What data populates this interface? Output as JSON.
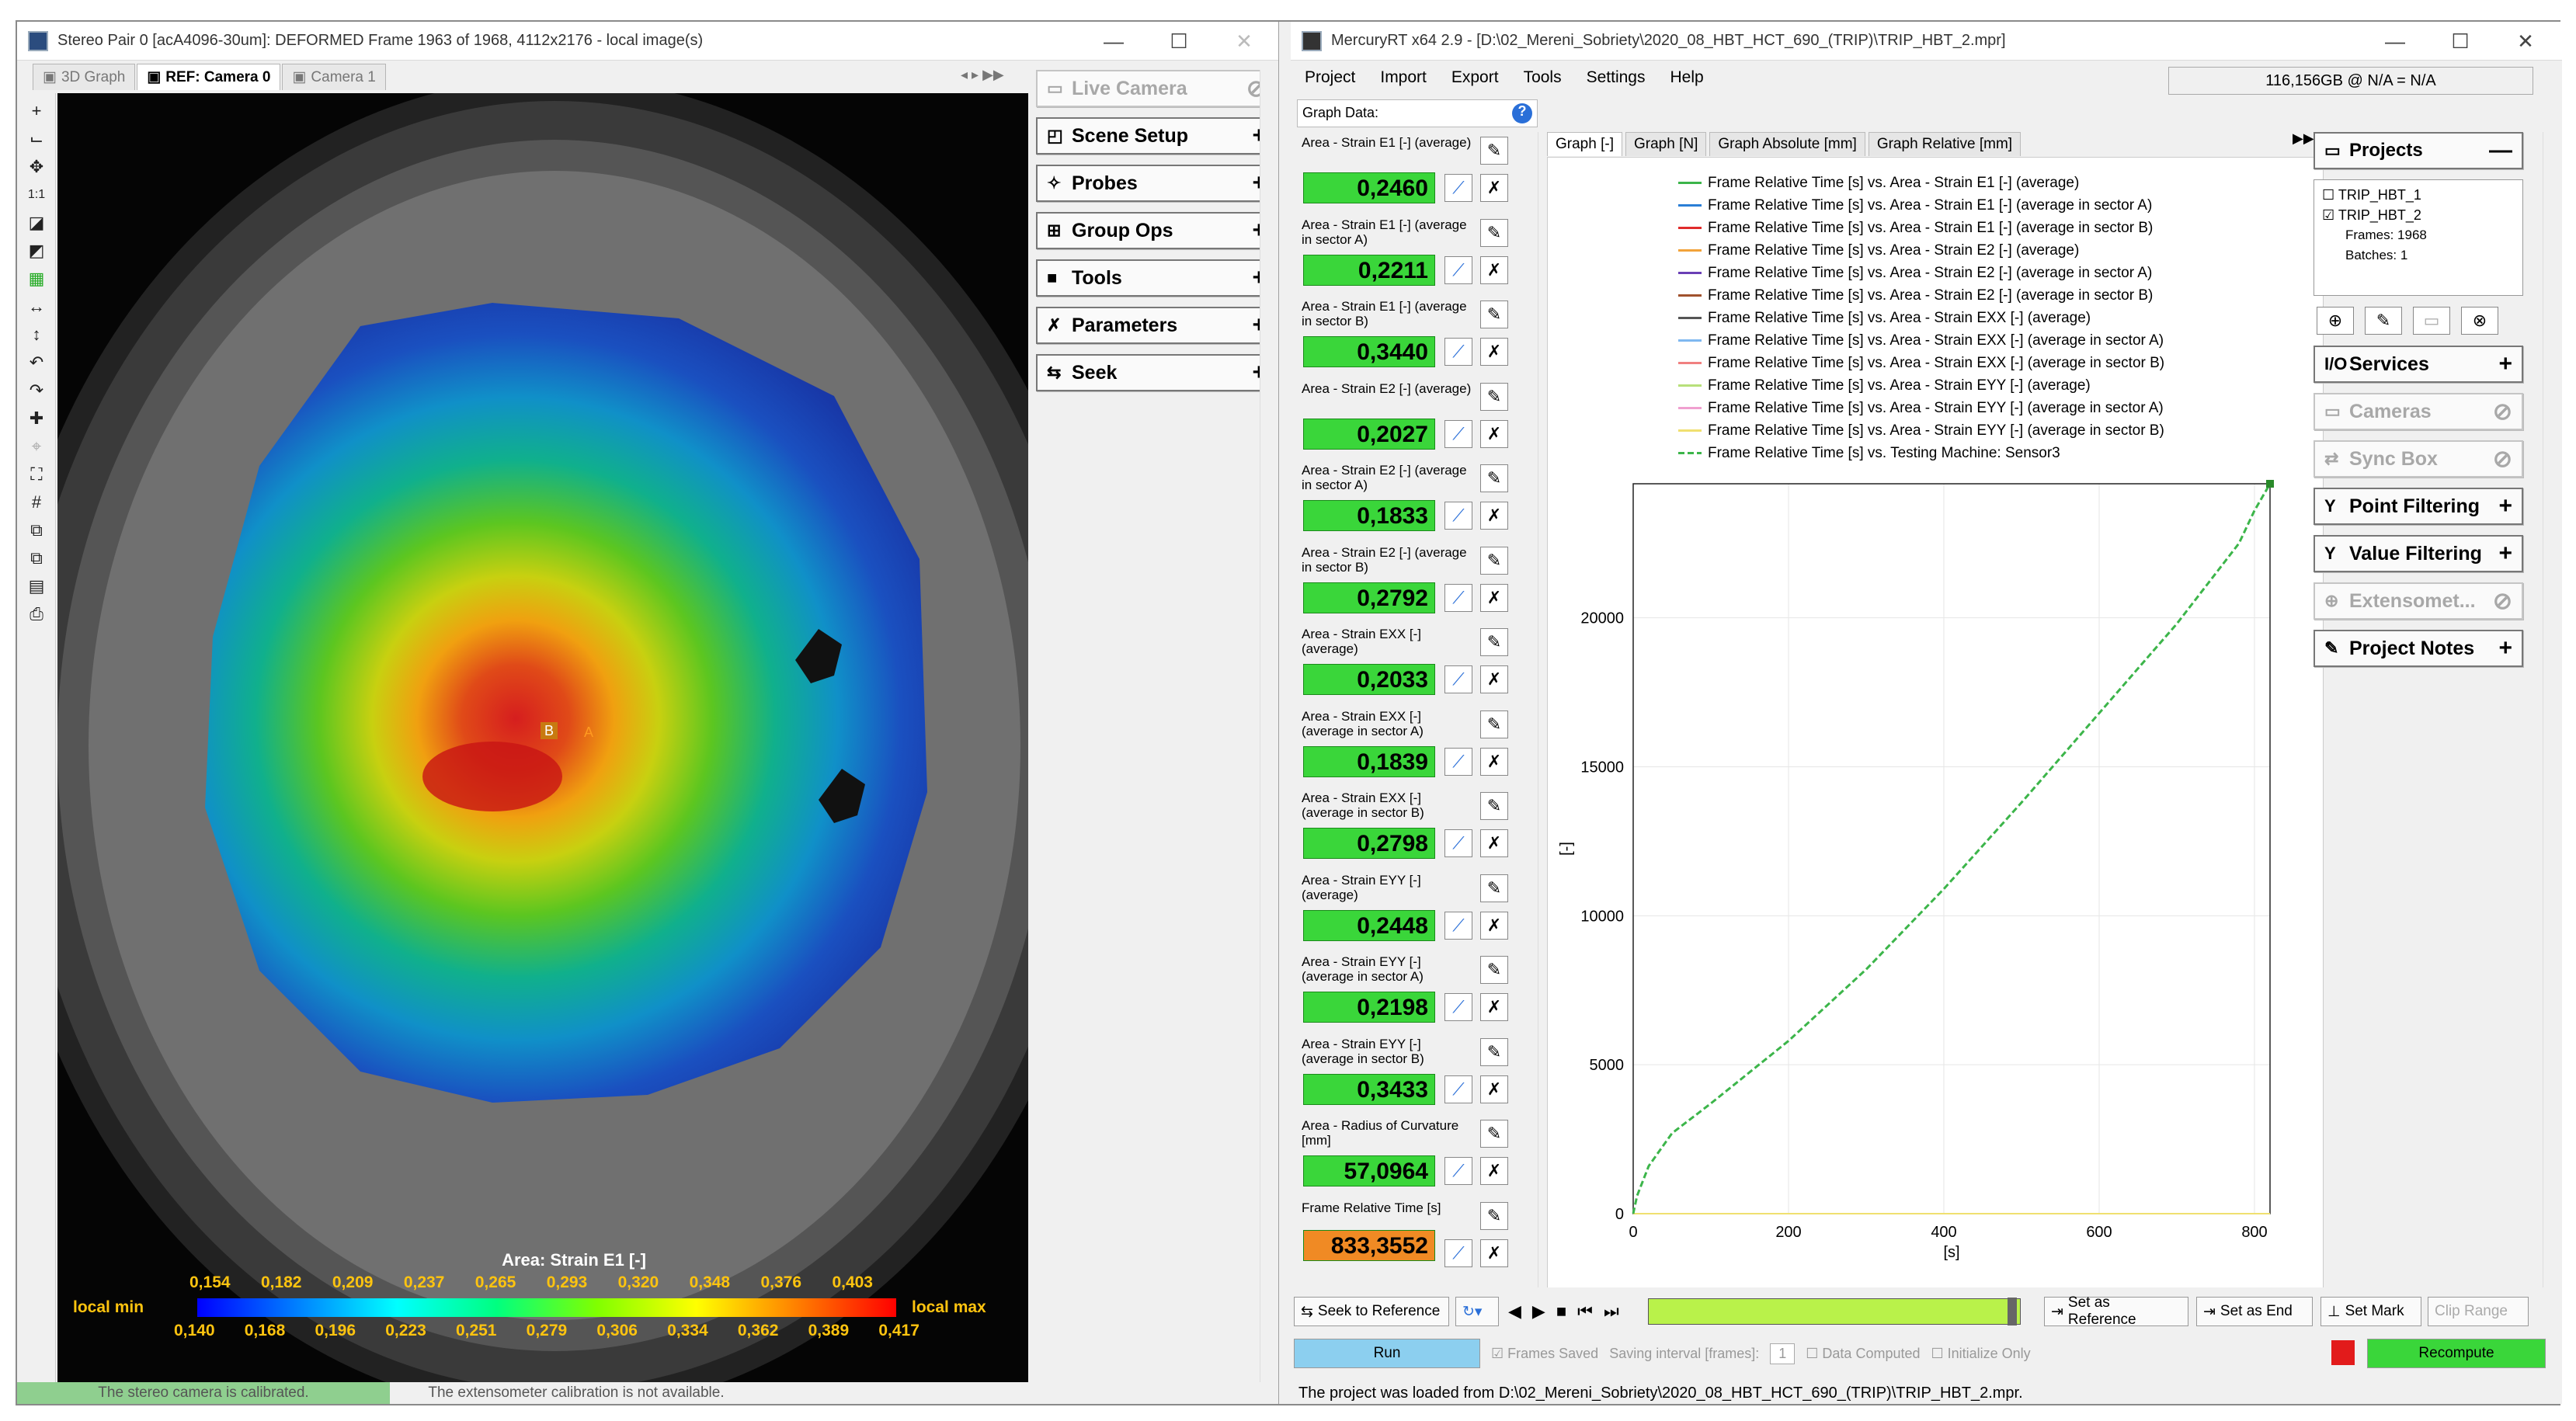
{
  "left": {
    "title": "Stereo Pair 0 [acA4096-30um]: DEFORMED Frame 1963 of 1968, 4112x2176 - local image(s)",
    "tabs": [
      "3D Graph",
      "REF: Camera 0",
      "Camera 1"
    ],
    "panel_buttons": [
      {
        "label": "Live Camera",
        "icon": "camera-icon",
        "action": "⊘",
        "enabled": false
      },
      {
        "label": "Scene Setup",
        "icon": "scene-icon",
        "action": "+",
        "enabled": true
      },
      {
        "label": "Probes",
        "icon": "probe-icon",
        "action": "+",
        "enabled": true
      },
      {
        "label": "Group Ops",
        "icon": "group-icon",
        "action": "+",
        "enabled": true
      },
      {
        "label": "Tools",
        "icon": "tools-icon",
        "action": "+",
        "enabled": true
      },
      {
        "label": "Parameters",
        "icon": "parameters-icon",
        "action": "+",
        "enabled": true
      },
      {
        "label": "Seek",
        "icon": "seek-icon",
        "action": "+",
        "enabled": true
      }
    ],
    "colorbar": {
      "title": "Area: Strain E1 [-]",
      "top_ticks": [
        "0,154",
        "0,182",
        "0,209",
        "0,237",
        "0,265",
        "0,293",
        "0,320",
        "0,348",
        "0,376",
        "0,403"
      ],
      "bottom_ticks": [
        "0,140",
        "0,168",
        "0,196",
        "0,223",
        "0,251",
        "0,279",
        "0,306",
        "0,334",
        "0,362",
        "0,389",
        "0,417"
      ],
      "min_label": "local min",
      "max_label": "local max"
    },
    "markers": [
      "B",
      "A"
    ],
    "status": [
      "The stereo camera is calibrated.",
      "The extensometer calibration is not available."
    ]
  },
  "right": {
    "title": "MercuryRT x64 2.9 - [D:\\02_Mereni_Sobriety\\2020_08_HBT_HCT_690_(TRIP)\\TRIP_HBT_2.mpr]",
    "menu": [
      "Project",
      "Import",
      "Export",
      "Tools",
      "Settings",
      "Help"
    ],
    "storage": "116,156GB @ N/A = N/A",
    "graph_data_label": "Graph Data:",
    "items": [
      {
        "label": "Area - Strain E1 [-] (average)",
        "value": "0,2460"
      },
      {
        "label": "Area - Strain E1 [-] (average in sector A)",
        "value": "0,2211"
      },
      {
        "label": "Area - Strain E1 [-] (average in sector B)",
        "value": "0,3440"
      },
      {
        "label": "Area - Strain E2 [-] (average)",
        "value": "0,2027"
      },
      {
        "label": "Area - Strain E2 [-] (average in sector A)",
        "value": "0,1833"
      },
      {
        "label": "Area - Strain E2 [-] (average in sector B)",
        "value": "0,2792"
      },
      {
        "label": "Area - Strain EXX [-] (average)",
        "value": "0,2033"
      },
      {
        "label": "Area - Strain EXX [-] (average in sector A)",
        "value": "0,1839"
      },
      {
        "label": "Area - Strain EXX [-] (average in sector B)",
        "value": "0,2798"
      },
      {
        "label": "Area - Strain EYY [-] (average)",
        "value": "0,2448"
      },
      {
        "label": "Area - Strain EYY [-] (average in sector A)",
        "value": "0,2198"
      },
      {
        "label": "Area - Strain EYY [-] (average in sector B)",
        "value": "0,3433"
      },
      {
        "label": "Area - Radius of Curvature [mm]",
        "value": "57,0964"
      },
      {
        "label": "Frame Relative Time [s]",
        "value": "833,3552"
      }
    ],
    "graph_tabs": [
      "Graph [-]",
      "Graph [N]",
      "Graph Absolute [mm]",
      "Graph Relative [mm]"
    ],
    "projects": {
      "title": "Projects",
      "items": [
        {
          "name": "TRIP_HBT_1",
          "checked": false
        },
        {
          "name": "TRIP_HBT_2",
          "checked": true
        }
      ],
      "frames": "Frames: 1968",
      "batches": "Batches: 1"
    },
    "side_buttons": [
      {
        "label": "Services",
        "icon": "io-icon",
        "action": "+",
        "enabled": true
      },
      {
        "label": "Cameras",
        "icon": "camera-icon",
        "action": "⊘",
        "enabled": false
      },
      {
        "label": "Sync Box",
        "icon": "sync-icon",
        "action": "⊘",
        "enabled": false
      },
      {
        "label": "Point Filtering",
        "icon": "filter-icon",
        "action": "+",
        "enabled": true
      },
      {
        "label": "Value Filtering",
        "icon": "filter-icon",
        "action": "+",
        "enabled": true
      },
      {
        "label": "Extensomet...",
        "icon": "extensometer-icon",
        "action": "⊘",
        "enabled": false
      },
      {
        "label": "Project Notes",
        "icon": "notes-icon",
        "action": "+",
        "enabled": true
      }
    ],
    "controls": {
      "seek_ref": "Seek to Reference",
      "set_ref": "Set as Reference",
      "set_end": "Set as End",
      "set_mark": "Set Mark",
      "clip": "Clip Range",
      "run": "Run",
      "frames_saved": "Frames Saved",
      "saving_interval": "Saving interval [frames]:",
      "interval_value": "1",
      "data_computed": "Data Computed",
      "init_only": "Initialize Only",
      "recompute": "Recompute"
    },
    "status": "The project was loaded from D:\\02_Mereni_Sobriety\\2020_08_HBT_HCT_690_(TRIP)\\TRIP_HBT_2.mpr."
  },
  "chart_data": {
    "type": "line",
    "xlabel": "[s]",
    "ylabel": "[-]",
    "xlim": [
      0,
      820
    ],
    "ylim": [
      0,
      24500
    ],
    "xticks": [
      0,
      200,
      400,
      600,
      800
    ],
    "yticks": [
      0,
      5000,
      10000,
      15000,
      20000
    ],
    "series": [
      {
        "name": "Frame Relative Time [s] vs. Area - Strain E1 [-] (average)",
        "color": "#3cb54a",
        "style": "solid",
        "x": [
          0,
          820
        ],
        "y": [
          0,
          0
        ]
      },
      {
        "name": "Frame Relative Time [s] vs. Area - Strain E1 [-] (average in sector A)",
        "color": "#2b7fd6",
        "style": "solid",
        "x": [
          0,
          820
        ],
        "y": [
          0,
          0
        ]
      },
      {
        "name": "Frame Relative Time [s] vs. Area - Strain E1 [-] (average in sector B)",
        "color": "#e02b2b",
        "style": "solid",
        "x": [
          0,
          820
        ],
        "y": [
          0,
          0
        ]
      },
      {
        "name": "Frame Relative Time [s] vs. Area - Strain E2 [-] (average)",
        "color": "#f2a33a",
        "style": "solid",
        "x": [
          0,
          820
        ],
        "y": [
          0,
          0
        ]
      },
      {
        "name": "Frame Relative Time [s] vs. Area - Strain E2 [-] (average in sector A)",
        "color": "#6a3fb5",
        "style": "solid",
        "x": [
          0,
          820
        ],
        "y": [
          0,
          0
        ]
      },
      {
        "name": "Frame Relative Time [s] vs. Area - Strain E2 [-] (average in sector B)",
        "color": "#a0522d",
        "style": "solid",
        "x": [
          0,
          820
        ],
        "y": [
          0,
          0
        ]
      },
      {
        "name": "Frame Relative Time [s] vs. Area - Strain EXX [-] (average)",
        "color": "#555555",
        "style": "solid",
        "x": [
          0,
          820
        ],
        "y": [
          0,
          0
        ]
      },
      {
        "name": "Frame Relative Time [s] vs. Area - Strain EXX [-] (average in sector A)",
        "color": "#7fb8f0",
        "style": "solid",
        "x": [
          0,
          820
        ],
        "y": [
          0,
          0
        ]
      },
      {
        "name": "Frame Relative Time [s] vs. Area - Strain EXX [-] (average in sector B)",
        "color": "#f08080",
        "style": "solid",
        "x": [
          0,
          820
        ],
        "y": [
          0,
          0
        ]
      },
      {
        "name": "Frame Relative Time [s] vs. Area - Strain EYY [-] (average)",
        "color": "#b8e07a",
        "style": "solid",
        "x": [
          0,
          820
        ],
        "y": [
          0,
          0
        ]
      },
      {
        "name": "Frame Relative Time [s] vs. Area - Strain EYY [-] (average in sector A)",
        "color": "#f0a0d0",
        "style": "solid",
        "x": [
          0,
          820
        ],
        "y": [
          0,
          0
        ]
      },
      {
        "name": "Frame Relative Time [s] vs. Area - Strain EYY [-] (average in sector B)",
        "color": "#f0e070",
        "style": "solid",
        "x": [
          0,
          820
        ],
        "y": [
          0,
          0
        ]
      },
      {
        "name": "Frame Relative Time [s] vs. Testing Machine: Sensor3",
        "color": "#3cb54a",
        "style": "dashed",
        "x": [
          0,
          5,
          20,
          50,
          100,
          200,
          300,
          400,
          500,
          600,
          700,
          780,
          800,
          820
        ],
        "y": [
          0,
          600,
          1600,
          2700,
          3700,
          5800,
          8200,
          10900,
          13800,
          16800,
          19800,
          22500,
          23600,
          24500
        ]
      }
    ]
  }
}
